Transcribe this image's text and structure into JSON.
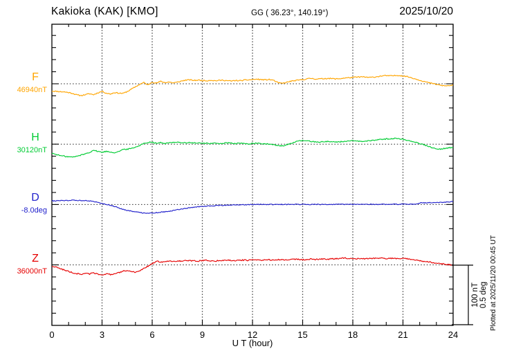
{
  "header": {
    "station": "Kakioka (KAK)  [KMO]",
    "coordinates": "GG ( 36.23°, 140.19°)",
    "date": "2025/10/20"
  },
  "x_axis": {
    "label": "U T (hour)",
    "tick_labels": [
      "0",
      "3",
      "6",
      "9",
      "12",
      "15",
      "18",
      "21",
      "24"
    ]
  },
  "scale_bar": {
    "line1": "100 nT",
    "line2": "0.5 deg"
  },
  "plotted_note": "Plotted at 2025/11/20 00:45 UT",
  "chart_data": {
    "type": "line",
    "title": "Kakioka (KAK) [KMO] magnetogram 2025/10/20",
    "xlabel": "U T (hour)",
    "x_range": [
      0,
      24
    ],
    "x_step_hours": 0.25,
    "grid_hours": [
      3,
      6,
      9,
      12,
      15,
      18,
      21
    ],
    "ticks_per_division": 5,
    "division_scale": {
      "nT": 100,
      "deg": 0.5
    },
    "series": [
      {
        "id": "F",
        "label": "F",
        "baseline_label": "46940nT",
        "baseline_value": 46940,
        "unit": "nT",
        "color": "#ffa500",
        "noise": 0.9,
        "offsets": [
          -12,
          -12.5,
          -13,
          -13.5,
          -14.5,
          -16,
          -18.5,
          -19.5,
          -18,
          -16.5,
          -18,
          -15,
          -12.5,
          -15.5,
          -17,
          -14.5,
          -15.5,
          -16,
          -13,
          -9,
          -5,
          -1,
          2,
          -2,
          3,
          1,
          4,
          2,
          3,
          1.5,
          2.5,
          4.5,
          6,
          6.5,
          5.5,
          6,
          5.5,
          5,
          6,
          5,
          5.5,
          6,
          5,
          4.5,
          5.5,
          5,
          6,
          6.5,
          7,
          7.5,
          7,
          6.5,
          7,
          6,
          2,
          0.5,
          2,
          4,
          5,
          6,
          7,
          8,
          9,
          8,
          8,
          8.5,
          9,
          8.5,
          8,
          8.5,
          9.5,
          10,
          10.5,
          11,
          11.5,
          11,
          10.5,
          11,
          12,
          13,
          13.5,
          13,
          13.5,
          14,
          13,
          12,
          10,
          8,
          6,
          4,
          2,
          0.5,
          -1,
          -2.5,
          -3.5,
          -3,
          -2.5
        ]
      },
      {
        "id": "H",
        "label": "H",
        "baseline_label": "30120nT",
        "baseline_value": 30120,
        "unit": "nT",
        "color": "#00cc33",
        "noise": 0.9,
        "offsets": [
          -15,
          -17,
          -19,
          -20,
          -21,
          -21.5,
          -20,
          -18,
          -16,
          -13.5,
          -10,
          -12,
          -13.5,
          -12,
          -13,
          -14,
          -12,
          -9,
          -8.5,
          -7,
          -5,
          -2,
          1,
          3,
          3.5,
          1.5,
          2.5,
          1,
          2,
          3,
          3.5,
          2.5,
          2,
          2.5,
          2,
          1.5,
          2,
          1.5,
          1,
          1.5,
          1,
          1.5,
          2,
          1.5,
          1,
          1.5,
          1,
          0.5,
          1,
          1.5,
          1,
          0.5,
          0,
          -1,
          -2.5,
          -3,
          -1.5,
          1,
          3,
          5,
          6,
          5.5,
          4.5,
          4,
          3.5,
          4,
          4.5,
          4,
          3.5,
          4,
          4.5,
          5,
          5.5,
          5,
          4.5,
          5,
          5.5,
          6.5,
          7.5,
          8,
          8.5,
          9,
          9.5,
          9,
          8,
          6.5,
          5,
          3,
          1,
          -1,
          -3.5,
          -6,
          -7.5,
          -8,
          -7,
          -6,
          -5.5
        ]
      },
      {
        "id": "D",
        "label": "D",
        "baseline_label": "-8.0deg",
        "baseline_value": -8.0,
        "unit": "deg",
        "color": "#2222cc",
        "noise": 0.0035,
        "offsets": [
          0.03,
          0.031,
          0.032,
          0.033,
          0.034,
          0.035,
          0.034,
          0.033,
          0.034,
          0.03,
          0.025,
          0.018,
          0.01,
          0.002,
          -0.006,
          -0.015,
          -0.028,
          -0.04,
          -0.048,
          -0.055,
          -0.06,
          -0.066,
          -0.07,
          -0.072,
          -0.07,
          -0.067,
          -0.063,
          -0.06,
          -0.057,
          -0.05,
          -0.044,
          -0.038,
          -0.032,
          -0.027,
          -0.023,
          -0.019,
          -0.016,
          -0.013,
          -0.011,
          -0.009,
          -0.008,
          -0.007,
          -0.006,
          -0.005,
          -0.004,
          -0.003,
          -0.002,
          -0.001,
          0.0,
          0.0,
          0.001,
          0.0,
          0.001,
          0.0,
          0.0,
          0.001,
          0.0,
          0.001,
          0.002,
          0.001,
          0.001,
          0.0,
          0.001,
          0.002,
          0.001,
          0.0,
          0.001,
          0.0,
          0.001,
          0.002,
          0.001,
          0.0,
          0.001,
          0.0,
          0.001,
          0.002,
          0.001,
          0.002,
          0.001,
          0.002,
          0.001,
          0.002,
          0.003,
          0.002,
          0.003,
          0.002,
          0.003,
          0.004,
          0.012,
          0.014,
          0.015,
          0.016,
          0.017,
          0.018,
          0.019,
          0.021,
          0.024
        ]
      },
      {
        "id": "Z",
        "label": "Z",
        "baseline_label": "36000nT",
        "baseline_value": 36000,
        "unit": "nT",
        "color": "#e60000",
        "noise": 1.0,
        "offsets": [
          -2,
          -4,
          -6,
          -8.5,
          -11,
          -13,
          -14.5,
          -15.5,
          -14,
          -15,
          -13,
          -15.5,
          -16,
          -15,
          -16,
          -15.5,
          -13,
          -10.5,
          -9,
          -11,
          -12.5,
          -10,
          -6,
          -2,
          2,
          6,
          5,
          5.5,
          6,
          6.5,
          6,
          6.5,
          7,
          6.5,
          7,
          6.5,
          7,
          7.5,
          7,
          6.5,
          7,
          7.5,
          8,
          7.5,
          7,
          7.5,
          8,
          7.5,
          8,
          8,
          7.5,
          8,
          8.5,
          8,
          8.5,
          9,
          8.5,
          9,
          9.5,
          9,
          8.5,
          9,
          9.5,
          9,
          9.5,
          10,
          9.5,
          10,
          10.5,
          11,
          11.5,
          11,
          10.5,
          10,
          10.5,
          10,
          10.5,
          11,
          11.5,
          11,
          10.5,
          11,
          10.5,
          10,
          10.5,
          10,
          9,
          8,
          7,
          6,
          5,
          4,
          3,
          2,
          1.5,
          0.5,
          0
        ]
      }
    ]
  }
}
